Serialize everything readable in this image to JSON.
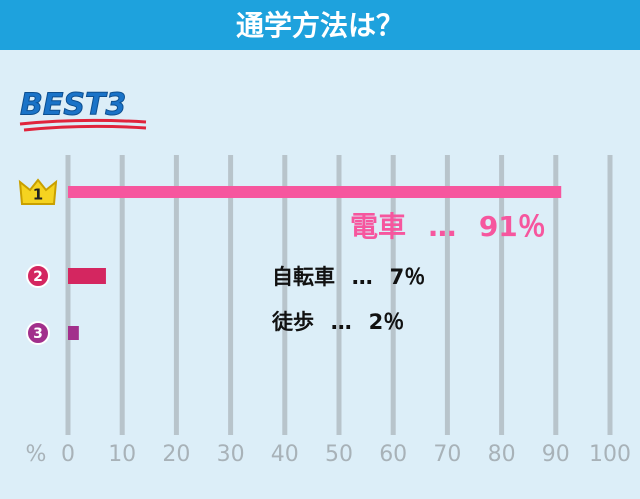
{
  "chart_data": {
    "type": "hbar",
    "title": "通学方法は？",
    "badge": "BEST3",
    "ranks": [
      "1",
      "2",
      "3"
    ],
    "categories": [
      "電車",
      "自転車",
      "徒歩"
    ],
    "values": [
      91,
      7,
      2
    ],
    "value_labels": [
      "91％",
      "7％",
      "2％"
    ],
    "separator": "…",
    "colors": [
      "#f6569e",
      "#d42660",
      "#a2308c"
    ],
    "label_colors": [
      "#f6569e",
      "#111111",
      "#111111"
    ],
    "xlabel": "%",
    "xlim": [
      0,
      100
    ],
    "xticks": [
      0,
      10,
      20,
      30,
      40,
      50,
      60,
      70,
      80,
      90,
      100
    ],
    "grid": true
  }
}
